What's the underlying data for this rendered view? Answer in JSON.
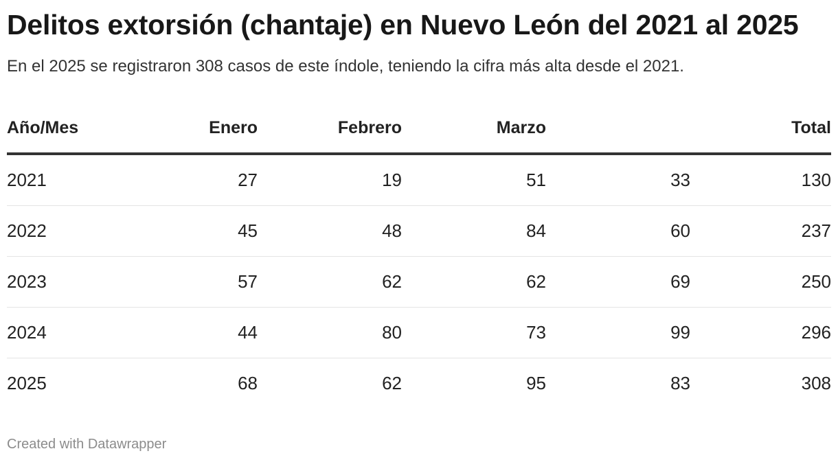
{
  "header": {
    "title": "Delitos extorsión (chantaje) en Nuevo León del 2021 al 2025",
    "subtitle": "En el 2025 se registraron 308 casos de este índole, teniendo la cifra más alta desde el 2021."
  },
  "footer": {
    "credit": "Created with Datawrapper"
  },
  "colors": {
    "text": "#222222",
    "header_rule": "#333333",
    "row_divider": "#e4e4e4",
    "credit": "#8c8c8c"
  },
  "chart_data": {
    "type": "table",
    "title": "Delitos extorsión (chantaje) en Nuevo León del 2021 al 2025",
    "subtitle": "En el 2025 se registraron 308 casos de este índole, teniendo la cifra más alta desde el 2021.",
    "columns": [
      "Año/Mes",
      "Enero",
      "Febrero",
      "Marzo",
      "",
      "Total"
    ],
    "rows": [
      [
        "2021",
        "27",
        "19",
        "51",
        "33",
        "130"
      ],
      [
        "2022",
        "45",
        "48",
        "84",
        "60",
        "237"
      ],
      [
        "2023",
        "57",
        "62",
        "62",
        "69",
        "250"
      ],
      [
        "2024",
        "44",
        "80",
        "73",
        "99",
        "296"
      ],
      [
        "2025",
        "68",
        "62",
        "95",
        "83",
        "308"
      ]
    ]
  }
}
